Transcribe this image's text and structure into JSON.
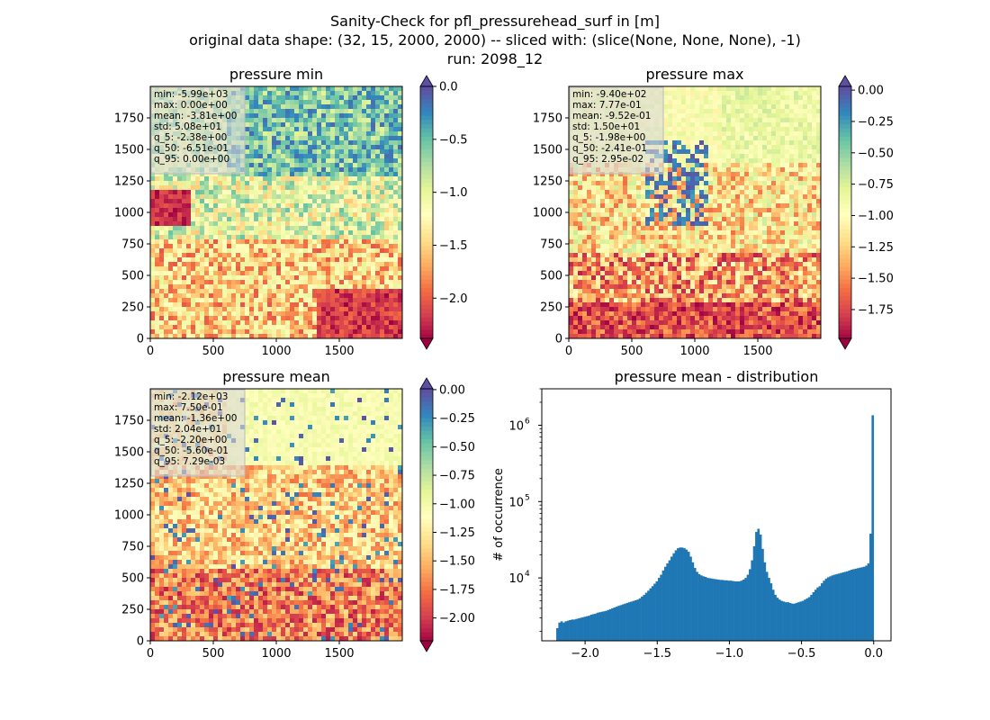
{
  "figure": {
    "title_lines": [
      "Sanity-Check for pfl_pressurehead_surf in [m]",
      "original data shape: (32, 15, 2000, 2000) -- sliced with: (slice(None, None, None), -1)",
      "run: 2098_12"
    ]
  },
  "colors": {
    "colormap": [
      "#9e0142",
      "#d53e4f",
      "#f46d43",
      "#fdae61",
      "#fee08b",
      "#ffffbf",
      "#e6f598",
      "#abdda4",
      "#66c2a5",
      "#3288bd",
      "#5e4fa2"
    ],
    "histogram_bar": "#1f77b4",
    "stats_box_bg": "#d9d9d9"
  },
  "chart_data": [
    {
      "type": "heatmap",
      "title": "pressure min",
      "colormap": "Spectral",
      "x_ticks": [
        "0",
        "500",
        "1000",
        "1500"
      ],
      "y_ticks": [
        "0",
        "250",
        "500",
        "750",
        "1000",
        "1250",
        "1500",
        "1750"
      ],
      "xlim": [
        0,
        2000
      ],
      "ylim": [
        0,
        2000
      ],
      "colorbar": {
        "min": -2.38,
        "max": 0.0,
        "ticks": [
          "0.0",
          "-0.5",
          "-1.0",
          "-1.5",
          "-2.0"
        ],
        "tick_values": [
          0.0,
          -0.5,
          -1.0,
          -1.5,
          -2.0
        ],
        "extend": "both"
      },
      "stats": [
        "min: -5.99e+03",
        "max: 0.00e+00",
        "mean: -3.81e+00",
        "std: 5.08e+01",
        "q_5: -2.38e+00",
        "q_50: -6.51e-01",
        "q_95: 0.00e+00"
      ]
    },
    {
      "type": "heatmap",
      "title": "pressure max",
      "colormap": "Spectral",
      "x_ticks": [
        "0",
        "500",
        "1000",
        "1500"
      ],
      "y_ticks": [
        "0",
        "250",
        "500",
        "750",
        "1000",
        "1250",
        "1500",
        "1750"
      ],
      "xlim": [
        0,
        2000
      ],
      "ylim": [
        0,
        2000
      ],
      "colorbar": {
        "min": -1.98,
        "max": 0.0295,
        "ticks": [
          "0.00",
          "-0.25",
          "-0.50",
          "-0.75",
          "-1.00",
          "-1.25",
          "-1.50",
          "-1.75"
        ],
        "tick_values": [
          0.0,
          -0.25,
          -0.5,
          -0.75,
          -1.0,
          -1.25,
          -1.5,
          -1.75
        ],
        "extend": "both"
      },
      "stats": [
        "min: -9.40e+02",
        "max: 7.77e-01",
        "mean: -9.52e-01",
        "std: 1.50e+01",
        "q_5: -1.98e+00",
        "q_50: -2.41e-01",
        "q_95: 2.95e-02"
      ]
    },
    {
      "type": "heatmap",
      "title": "pressure mean",
      "colormap": "Spectral",
      "x_ticks": [
        "0",
        "500",
        "1000",
        "1500"
      ],
      "y_ticks": [
        "0",
        "250",
        "500",
        "750",
        "1000",
        "1250",
        "1500",
        "1750"
      ],
      "xlim": [
        0,
        2000
      ],
      "ylim": [
        0,
        2000
      ],
      "colorbar": {
        "min": -2.2,
        "max": 0.00729,
        "ticks": [
          "0.00",
          "-0.25",
          "-0.50",
          "-0.75",
          "-1.00",
          "-1.25",
          "-1.50",
          "-1.75",
          "-2.00"
        ],
        "tick_values": [
          0.0,
          -0.25,
          -0.5,
          -0.75,
          -1.0,
          -1.25,
          -1.5,
          -1.75,
          -2.0
        ],
        "extend": "both"
      },
      "stats": [
        "min: -2.12e+03",
        "max: 7.50e-01",
        "mean: -1.36e+00",
        "std: 2.04e+01",
        "q_5: -2.20e+00",
        "q_50: -5.60e-01",
        "q_95: 7.29e-03"
      ]
    },
    {
      "type": "bar",
      "title": "pressure mean - distribution",
      "xlabel": "",
      "ylabel": "# of occurrence",
      "y_scale": "log",
      "xlim": [
        -2.3,
        0.12
      ],
      "ylim": [
        1500,
        3000000
      ],
      "x_ticks": [
        -2.0,
        -1.5,
        -1.0,
        -0.5,
        0.0
      ],
      "x_tick_labels": [
        "−2.0",
        "−1.5",
        "−1.0",
        "−0.5",
        "0.0"
      ],
      "y_major_ticks": [
        10000,
        100000,
        1000000
      ],
      "y_tick_labels": [
        {
          "base": "10",
          "exp": "4"
        },
        {
          "base": "10",
          "exp": "5"
        },
        {
          "base": "10",
          "exp": "6"
        }
      ],
      "bin_range": [
        -2.2,
        0.0
      ],
      "bins": 150,
      "values": [
        2200,
        2600,
        2700,
        2600,
        2700,
        2750,
        2800,
        2850,
        2850,
        2900,
        2950,
        3000,
        3050,
        3100,
        3150,
        3200,
        3300,
        3350,
        3400,
        3500,
        3550,
        3600,
        3650,
        3700,
        3800,
        3900,
        4000,
        4100,
        4200,
        4300,
        4400,
        4500,
        4600,
        4700,
        4800,
        4900,
        5000,
        5100,
        5200,
        5400,
        5700,
        6000,
        6400,
        6800,
        7300,
        7800,
        8400,
        9000,
        10000,
        11000,
        12500,
        14000,
        15500,
        17000,
        19000,
        21000,
        23000,
        24500,
        25000,
        25000,
        24500,
        23500,
        22000,
        19000,
        16000,
        13500,
        12000,
        11200,
        10800,
        10500,
        10300,
        10000,
        9900,
        9800,
        9700,
        9600,
        9500,
        9400,
        9400,
        9300,
        9300,
        9200,
        9200,
        9100,
        9000,
        9000,
        9000,
        9200,
        9500,
        10000,
        11000,
        13000,
        17000,
        26000,
        40000,
        44000,
        37000,
        24000,
        16000,
        12000,
        10000,
        8500,
        7000,
        6000,
        5500,
        5200,
        5000,
        4900,
        4800,
        4800,
        4700,
        4600,
        4600,
        4700,
        4800,
        4900,
        5000,
        5200,
        5400,
        5600,
        6000,
        6500,
        7000,
        7500,
        7800,
        8500,
        9200,
        9800,
        10200,
        10500,
        10800,
        11000,
        11200,
        11400,
        11600,
        11800,
        12000,
        12200,
        12500,
        12800,
        13000,
        13200,
        13400,
        13600,
        13800,
        14000,
        14500,
        15500,
        38000,
        1350000
      ]
    }
  ]
}
